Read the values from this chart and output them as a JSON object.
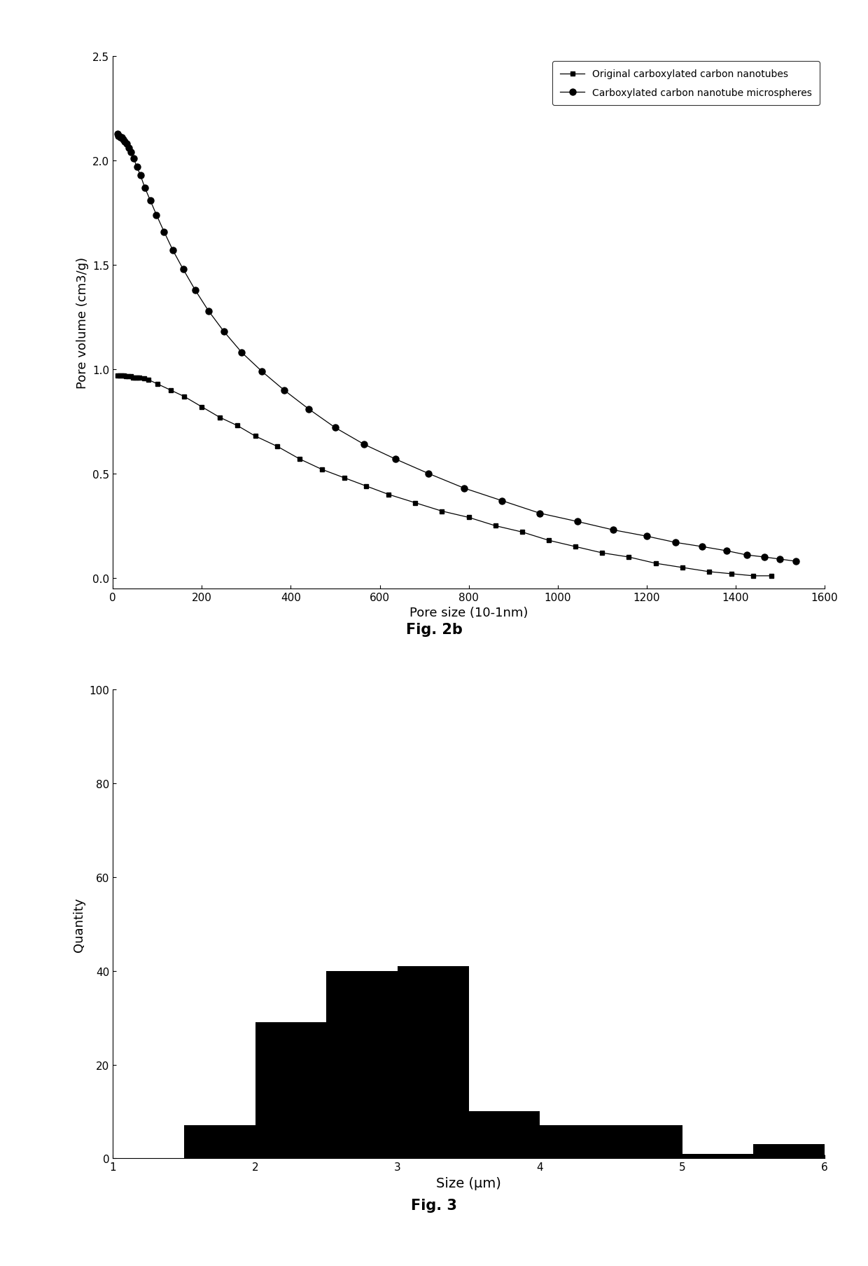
{
  "fig2b": {
    "title": "Fig. 2b",
    "xlabel": "Pore size (10-1nm)",
    "ylabel": "Pore volume (cm3/g)",
    "xlim": [
      0,
      1600
    ],
    "ylim": [
      -0.05,
      2.5
    ],
    "yticks": [
      0.0,
      0.5,
      1.0,
      1.5,
      2.0,
      2.5
    ],
    "xticks": [
      0,
      200,
      400,
      600,
      800,
      1000,
      1200,
      1400,
      1600
    ],
    "series1_label": "Original carboxylated carbon nanotubes",
    "series2_label": "Carboxylated carbon nanotube microspheres",
    "series1_x": [
      10,
      15,
      20,
      25,
      30,
      35,
      40,
      45,
      50,
      55,
      60,
      70,
      80,
      100,
      130,
      160,
      200,
      240,
      280,
      320,
      370,
      420,
      470,
      520,
      570,
      620,
      680,
      740,
      800,
      860,
      920,
      980,
      1040,
      1100,
      1160,
      1220,
      1280,
      1340,
      1390,
      1440,
      1480
    ],
    "series1_y": [
      0.97,
      0.97,
      0.97,
      0.97,
      0.965,
      0.965,
      0.965,
      0.96,
      0.96,
      0.96,
      0.96,
      0.955,
      0.95,
      0.93,
      0.9,
      0.87,
      0.82,
      0.77,
      0.73,
      0.68,
      0.63,
      0.57,
      0.52,
      0.48,
      0.44,
      0.4,
      0.36,
      0.32,
      0.29,
      0.25,
      0.22,
      0.18,
      0.15,
      0.12,
      0.1,
      0.07,
      0.05,
      0.03,
      0.02,
      0.01,
      0.01
    ],
    "series2_x": [
      10,
      12,
      14,
      17,
      20,
      23,
      27,
      31,
      36,
      41,
      47,
      54,
      62,
      72,
      84,
      98,
      115,
      135,
      158,
      185,
      215,
      250,
      290,
      335,
      385,
      440,
      500,
      565,
      635,
      710,
      790,
      875,
      960,
      1045,
      1125,
      1200,
      1265,
      1325,
      1380,
      1425,
      1465,
      1500,
      1535
    ],
    "series2_y": [
      2.13,
      2.12,
      2.12,
      2.11,
      2.11,
      2.1,
      2.09,
      2.08,
      2.06,
      2.04,
      2.01,
      1.97,
      1.93,
      1.87,
      1.81,
      1.74,
      1.66,
      1.57,
      1.48,
      1.38,
      1.28,
      1.18,
      1.08,
      0.99,
      0.9,
      0.81,
      0.72,
      0.64,
      0.57,
      0.5,
      0.43,
      0.37,
      0.31,
      0.27,
      0.23,
      0.2,
      0.17,
      0.15,
      0.13,
      0.11,
      0.1,
      0.09,
      0.08
    ]
  },
  "fig3": {
    "title": "Fig. 3",
    "xlabel": "Size (μm)",
    "ylabel": "Quantity",
    "xlim": [
      1,
      6
    ],
    "ylim": [
      0,
      100
    ],
    "yticks": [
      0,
      20,
      40,
      60,
      80,
      100
    ],
    "xticks": [
      1,
      2,
      3,
      4,
      5,
      6
    ],
    "bar_centers": [
      1.75,
      2.25,
      2.75,
      3.25,
      3.75,
      4.25,
      4.75,
      5.25,
      5.75
    ],
    "bar_heights": [
      7,
      29,
      40,
      41,
      10,
      7,
      7,
      1,
      3
    ],
    "bar_width": 0.5,
    "bar_color": "#000000"
  },
  "background_color": "#ffffff",
  "line_color": "#000000",
  "marker_color": "#000000"
}
